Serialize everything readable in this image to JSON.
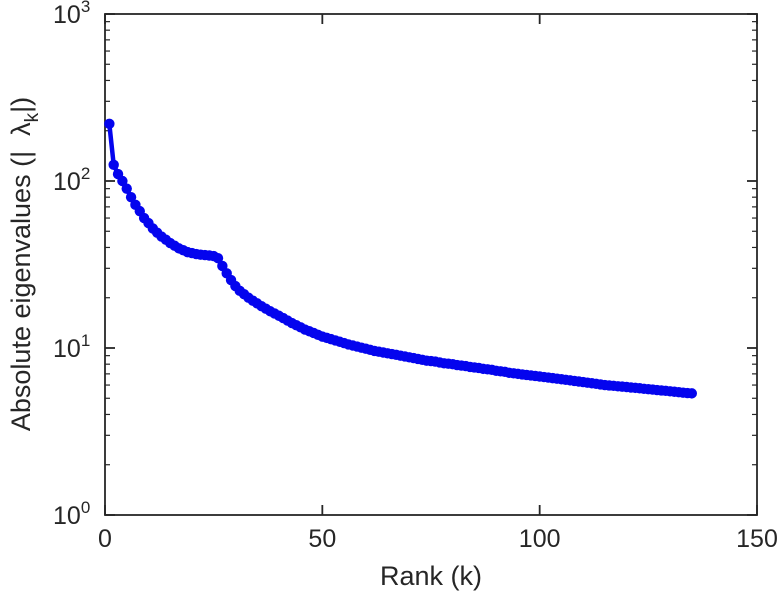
{
  "chart_data": {
    "type": "line",
    "title": "",
    "xlabel": "Rank (k)",
    "ylabel": {
      "prefix": "Absolute eigenvalues (|",
      "gap": "  ",
      "symbol": "λ",
      "subscript": "k",
      "suffix": "|)"
    },
    "x_ticks": [
      0,
      50,
      100,
      150
    ],
    "y_ticks": [
      {
        "base": "10",
        "exp": "0",
        "value": 1
      },
      {
        "base": "10",
        "exp": "1",
        "value": 10
      },
      {
        "base": "10",
        "exp": "2",
        "value": 100
      },
      {
        "base": "10",
        "exp": "3",
        "value": 1000
      }
    ],
    "xlim": [
      0,
      150
    ],
    "ylim": [
      1,
      1000
    ],
    "y_scale": "log",
    "grid": false,
    "legend": "none",
    "line_color": "#0404ee",
    "marker": "dot",
    "series": [
      {
        "name": "absolute-eigenvalues",
        "x_start": 1,
        "x_step": 1,
        "values": [
          220,
          125,
          110,
          100,
          90,
          80,
          72,
          66,
          60,
          56,
          52,
          49,
          46.5,
          44.5,
          42.5,
          41,
          39.5,
          38.5,
          37.5,
          37,
          36.5,
          36.2,
          36,
          35.8,
          35.5,
          34.5,
          31,
          28,
          25.5,
          23.5,
          22,
          21,
          20,
          19.2,
          18.5,
          17.8,
          17.2,
          16.6,
          16.1,
          15.6,
          15.1,
          14.6,
          14.1,
          13.7,
          13.3,
          12.9,
          12.6,
          12.3,
          12,
          11.7,
          11.5,
          11.3,
          11.1,
          10.9,
          10.7,
          10.5,
          10.35,
          10.2,
          10.05,
          9.9,
          9.75,
          9.6,
          9.5,
          9.4,
          9.3,
          9.2,
          9.1,
          9,
          8.9,
          8.8,
          8.7,
          8.6,
          8.5,
          8.4,
          8.35,
          8.3,
          8.2,
          8.1,
          8.05,
          8,
          7.9,
          7.85,
          7.8,
          7.7,
          7.65,
          7.6,
          7.5,
          7.45,
          7.4,
          7.3,
          7.25,
          7.2,
          7.1,
          7.05,
          7,
          6.95,
          6.9,
          6.85,
          6.8,
          6.75,
          6.7,
          6.65,
          6.6,
          6.55,
          6.5,
          6.45,
          6.4,
          6.35,
          6.3,
          6.25,
          6.2,
          6.15,
          6.1,
          6.05,
          6,
          5.97,
          5.94,
          5.9,
          5.87,
          5.84,
          5.8,
          5.77,
          5.74,
          5.7,
          5.67,
          5.64,
          5.6,
          5.57,
          5.54,
          5.5,
          5.47,
          5.44,
          5.4,
          5.37,
          5.35
        ]
      }
    ]
  }
}
